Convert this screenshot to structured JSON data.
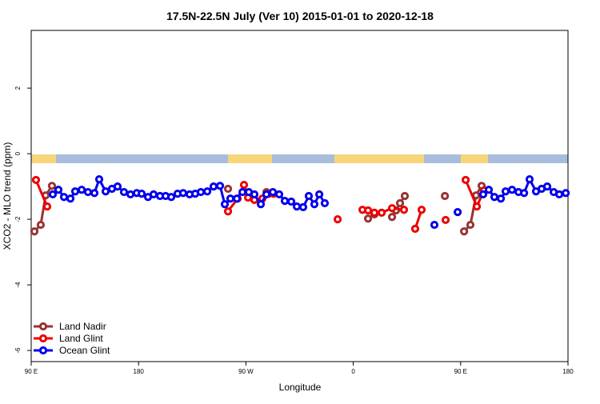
{
  "chart_data": {
    "type": "line",
    "title": "17.5N-22.5N July (Ver 10)   2015-01-01 to 2020-12-18",
    "x_label": "Longitude",
    "y_label": "XCO2 - MLO trend (ppm)",
    "xlim": [
      90,
      540
    ],
    "xticks": [
      {
        "value": 90,
        "label": "90 E"
      },
      180,
      {
        "value": 270,
        "label": "90 W"
      },
      {
        "value": 360,
        "label": "0"
      },
      {
        "value": 450,
        "label": "90 E"
      },
      {
        "value": 540,
        "label": "180"
      }
    ],
    "ylim": [
      -6.34,
      3.76
    ],
    "yticks": [
      -6,
      -4,
      -2,
      0,
      2
    ],
    "legend": "bottom-left",
    "series": [
      {
        "name": "Land Nadir",
        "color": "#993333",
        "x": [
          92.7,
          98.0,
          102.1,
          107.4,
          null,
          255.0,
          null,
          287.2,
          null,
          372.4,
          377.7,
          null,
          392.5,
          395.8,
          399.2,
          403.2,
          null,
          436.8,
          null,
          452.9,
          458.2,
          462.9,
          467.6
        ],
        "values": [
          -2.37,
          -2.17,
          -1.27,
          -0.98,
          null,
          -1.07,
          null,
          -1.17,
          null,
          -1.98,
          -1.85,
          null,
          -1.93,
          -1.73,
          -1.51,
          -1.29,
          null,
          -1.29,
          null,
          -2.37,
          -2.17,
          -1.27,
          -0.98
        ]
      },
      {
        "name": "Land Glint",
        "color": "#ee0000",
        "x": [
          94.0,
          103.4,
          null,
          255.0,
          263.0,
          268.4,
          271.8,
          277.1,
          283.8,
          289.2,
          293.2,
          null,
          346.9,
          null,
          367.7,
          372.4,
          377.7,
          383.8,
          392.5,
          402.5,
          null,
          411.9,
          417.3,
          null,
          437.4,
          null,
          454.2,
          463.6,
          469.6
        ],
        "values": [
          -0.8,
          -1.61,
          null,
          -1.76,
          -1.37,
          -0.95,
          -1.34,
          -1.41,
          -1.37,
          -1.22,
          -1.22,
          null,
          -2.0,
          null,
          -1.71,
          -1.73,
          -1.8,
          -1.8,
          -1.66,
          -1.71,
          null,
          -2.29,
          -1.71,
          null,
          -2.02,
          null,
          -0.8,
          -1.61,
          -1.12
        ]
      },
      {
        "name": "Ocean Glint",
        "color": "#0000ee",
        "x": [
          108.1,
          112.8,
          117.5,
          122.9,
          126.9,
          132.3,
          137.6,
          143.0,
          147.0,
          152.4,
          157.7,
          162.4,
          167.8,
          173.2,
          178.5,
          182.6,
          187.9,
          192.6,
          198.0,
          202.7,
          207.4,
          212.7,
          217.4,
          222.8,
          227.5,
          232.2,
          237.6,
          242.9,
          248.3,
          252.3,
          257.0,
          262.4,
          267.1,
          272.4,
          277.1,
          282.5,
          287.2,
          292.6,
          297.9,
          302.6,
          308.0,
          312.7,
          318.0,
          322.7,
          327.4,
          331.5,
          336.1,
          null,
          428.0,
          null,
          447.5,
          null,
          468.9,
          473.6,
          478.3,
          483.7,
          487.7,
          493.1,
          498.5,
          503.2,
          507.8,
          513.2,
          517.9,
          522.6,
          528.0,
          532.7,
          538.1
        ],
        "values": [
          -1.24,
          -1.1,
          -1.32,
          -1.37,
          -1.15,
          -1.1,
          -1.17,
          -1.2,
          -0.78,
          -1.15,
          -1.07,
          -1.0,
          -1.17,
          -1.24,
          -1.2,
          -1.22,
          -1.32,
          -1.24,
          -1.29,
          -1.29,
          -1.32,
          -1.22,
          -1.2,
          -1.24,
          -1.22,
          -1.17,
          -1.15,
          -1.0,
          -0.98,
          -1.54,
          -1.37,
          -1.37,
          -1.17,
          -1.17,
          -1.24,
          -1.54,
          -1.24,
          -1.17,
          -1.24,
          -1.44,
          -1.46,
          -1.61,
          -1.63,
          -1.29,
          -1.54,
          -1.24,
          -1.51,
          null,
          -2.17,
          null,
          -1.78,
          null,
          -1.24,
          -1.1,
          -1.32,
          -1.37,
          -1.15,
          -1.1,
          -1.17,
          -1.2,
          -0.78,
          -1.15,
          -1.07,
          -1.0,
          -1.17,
          -1.24,
          -1.2
        ]
      }
    ]
  }
}
